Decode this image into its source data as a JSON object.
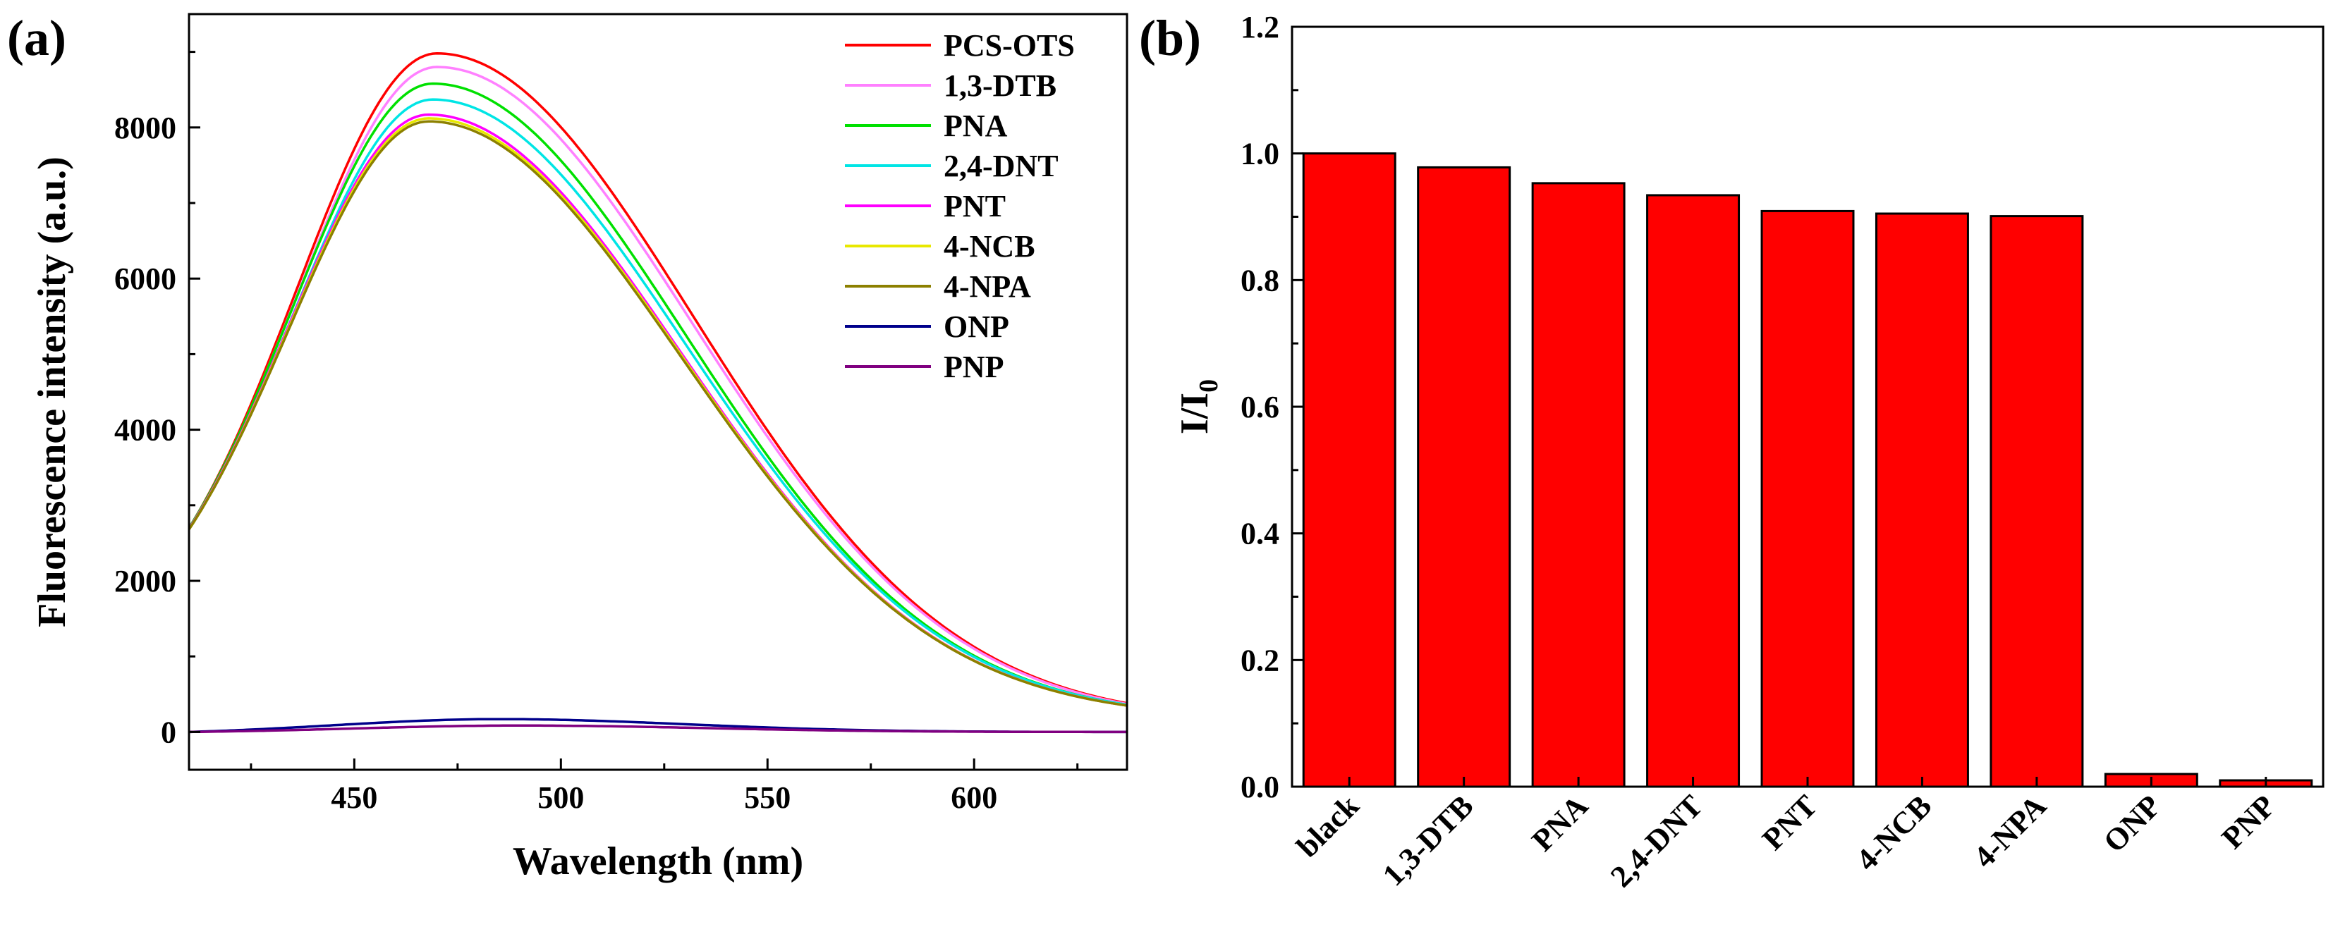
{
  "chart_data": [
    {
      "panel": "(a)",
      "type": "line",
      "xlabel": "Wavelength (nm)",
      "ylabel": "Fluorescence intensity (a.u.)",
      "xlim": [
        410,
        637
      ],
      "ylim": [
        -500,
        9500
      ],
      "xticks": [
        450,
        500,
        550,
        600
      ],
      "yticks": [
        0,
        2000,
        4000,
        6000,
        8000
      ],
      "legend_position": "top-right",
      "series": [
        {
          "name": "PCS-OTS",
          "color": "#ff0000",
          "peak_x": 470,
          "peak_y": 8980,
          "start_y": 2700,
          "end_y": 380,
          "width_left": 34,
          "width_right": 62
        },
        {
          "name": "1,3-DTB",
          "color": "#ff80ff",
          "peak_x": 470,
          "peak_y": 8800,
          "start_y": 2700,
          "end_y": 370,
          "width_left": 34,
          "width_right": 62
        },
        {
          "name": "PNA",
          "color": "#00e000",
          "peak_x": 469,
          "peak_y": 8580,
          "start_y": 2700,
          "end_y": 360,
          "width_left": 34,
          "width_right": 61
        },
        {
          "name": "2,4-DNT",
          "color": "#00e5e5",
          "peak_x": 469,
          "peak_y": 8370,
          "start_y": 2690,
          "end_y": 360,
          "width_left": 34,
          "width_right": 61
        },
        {
          "name": "PNT",
          "color": "#ff00ff",
          "peak_x": 468,
          "peak_y": 8170,
          "start_y": 2690,
          "end_y": 350,
          "width_left": 34,
          "width_right": 61
        },
        {
          "name": "4-NCB",
          "color": "#e8e800",
          "peak_x": 468,
          "peak_y": 8120,
          "start_y": 2680,
          "end_y": 350,
          "width_left": 34,
          "width_right": 61
        },
        {
          "name": "4-NPA",
          "color": "#8c8000",
          "peak_x": 468,
          "peak_y": 8080,
          "start_y": 2680,
          "end_y": 350,
          "width_left": 34,
          "width_right": 61
        },
        {
          "name": "ONP",
          "color": "#00008b",
          "peak_x": 485,
          "peak_y": 170,
          "start_y": 0,
          "end_y": 0,
          "width_left": 40,
          "width_right": 45
        },
        {
          "name": "PNP",
          "color": "#800080",
          "peak_x": 490,
          "peak_y": 85,
          "start_y": 0,
          "end_y": 0,
          "width_left": 40,
          "width_right": 45
        }
      ]
    },
    {
      "panel": "(b)",
      "type": "bar",
      "xlabel": "",
      "ylabel": "I/I0",
      "ylabel_main": "I/I",
      "ylabel_sub": "0",
      "ylim": [
        0,
        1.2
      ],
      "yticks": [
        "0.0",
        "0.2",
        "0.4",
        "0.6",
        "0.8",
        "1.0",
        "1.2"
      ],
      "bar_color": "#ff0000",
      "categories": [
        "black",
        "1,3-DTB",
        "PNA",
        "2,4-DNT",
        "PNT",
        "4-NCB",
        "4-NPA",
        "ONP",
        "PNP"
      ],
      "values": [
        1.0,
        0.978,
        0.953,
        0.934,
        0.909,
        0.905,
        0.901,
        0.02,
        0.01
      ]
    }
  ]
}
